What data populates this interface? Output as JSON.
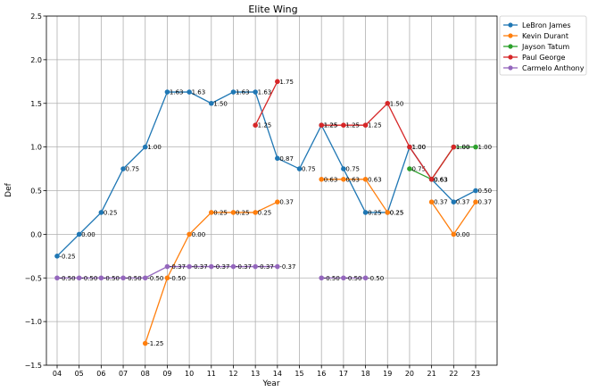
{
  "chart_data": {
    "type": "line",
    "title": "Elite Wing",
    "xlabel": "Year",
    "ylabel": "Def",
    "categories": [
      "04",
      "05",
      "06",
      "07",
      "08",
      "09",
      "10",
      "11",
      "12",
      "13",
      "14",
      "15",
      "16",
      "17",
      "18",
      "19",
      "20",
      "21",
      "22",
      "23"
    ],
    "ylim": [
      -1.5,
      2.5
    ],
    "yticks": [
      "−1.5",
      "−1.0",
      "−0.5",
      "0.0",
      "0.5",
      "1.0",
      "1.5",
      "2.0",
      "2.5"
    ],
    "ytick_values": [
      -1.5,
      -1.0,
      -0.5,
      0.0,
      0.5,
      1.0,
      1.5,
      2.0,
      2.5
    ],
    "grid": true,
    "legend_position": "outside-top-right",
    "series": [
      {
        "name": "LeBron James",
        "color": "#1f77b4",
        "values": [
          -0.25,
          0.0,
          0.25,
          0.75,
          1.0,
          1.63,
          1.63,
          1.5,
          1.63,
          1.63,
          0.87,
          0.75,
          1.25,
          0.75,
          0.25,
          0.25,
          1.0,
          0.63,
          0.37,
          0.5
        ],
        "labels": [
          "-0.25",
          "0.00",
          "0.25",
          "0.75",
          "1.00",
          "1.63",
          "1.63",
          "1.50",
          "1.63",
          "1.63",
          "0.87",
          "0.75",
          "1.25",
          "0.75",
          "0.25",
          "0.25",
          "1.00",
          "0.63",
          "0.37",
          "0.50"
        ]
      },
      {
        "name": "Kevin Durant",
        "color": "#ff7f0e",
        "values": [
          null,
          null,
          null,
          null,
          -1.25,
          -0.5,
          0.0,
          0.25,
          0.25,
          0.25,
          0.37,
          null,
          0.63,
          0.63,
          0.63,
          0.25,
          null,
          0.37,
          0.0,
          0.37
        ],
        "labels": [
          "",
          "",
          "",
          "",
          "-1.25",
          "-0.50",
          "0.00",
          "0.25",
          "0.25",
          "0.25",
          "0.37",
          "",
          "0.63",
          "0.63",
          "0.63",
          "0.25",
          "",
          "0.37",
          "0.00",
          "0.37"
        ]
      },
      {
        "name": "Jayson Tatum",
        "color": "#2ca02c",
        "values": [
          null,
          null,
          null,
          null,
          null,
          null,
          null,
          null,
          null,
          null,
          null,
          null,
          null,
          null,
          null,
          null,
          0.75,
          0.63,
          1.0,
          1.0
        ],
        "labels": [
          "",
          "",
          "",
          "",
          "",
          "",
          "",
          "",
          "",
          "",
          "",
          "",
          "",
          "",
          "",
          "",
          "0.75",
          "0.63",
          "1.00",
          "1.00"
        ]
      },
      {
        "name": "Paul George",
        "color": "#d62728",
        "values": [
          null,
          null,
          null,
          null,
          null,
          null,
          null,
          null,
          null,
          1.25,
          1.75,
          null,
          1.25,
          1.25,
          1.25,
          1.5,
          1.0,
          0.63,
          1.0,
          null
        ],
        "labels": [
          "",
          "",
          "",
          "",
          "",
          "",
          "",
          "",
          "",
          "1.25",
          "1.75",
          "",
          "1.25",
          "1.25",
          "1.25",
          "1.50",
          "1.00",
          "0.63",
          "1.00",
          ""
        ]
      },
      {
        "name": "Carmelo Anthony",
        "color": "#9467bd",
        "values": [
          -0.5,
          -0.5,
          -0.5,
          -0.5,
          -0.5,
          -0.37,
          -0.37,
          -0.37,
          -0.37,
          -0.37,
          -0.37,
          null,
          -0.5,
          -0.5,
          -0.5,
          null,
          null,
          null,
          null,
          null
        ],
        "labels": [
          "-0.50",
          "-0.50",
          "-0.50",
          "-0.50",
          "-0.50",
          "-0.37",
          "-0.37",
          "-0.37",
          "-0.37",
          "-0.37",
          "-0.37",
          "",
          "-0.50",
          "-0.50",
          "-0.50",
          "",
          "",
          "",
          "",
          ""
        ]
      }
    ]
  }
}
